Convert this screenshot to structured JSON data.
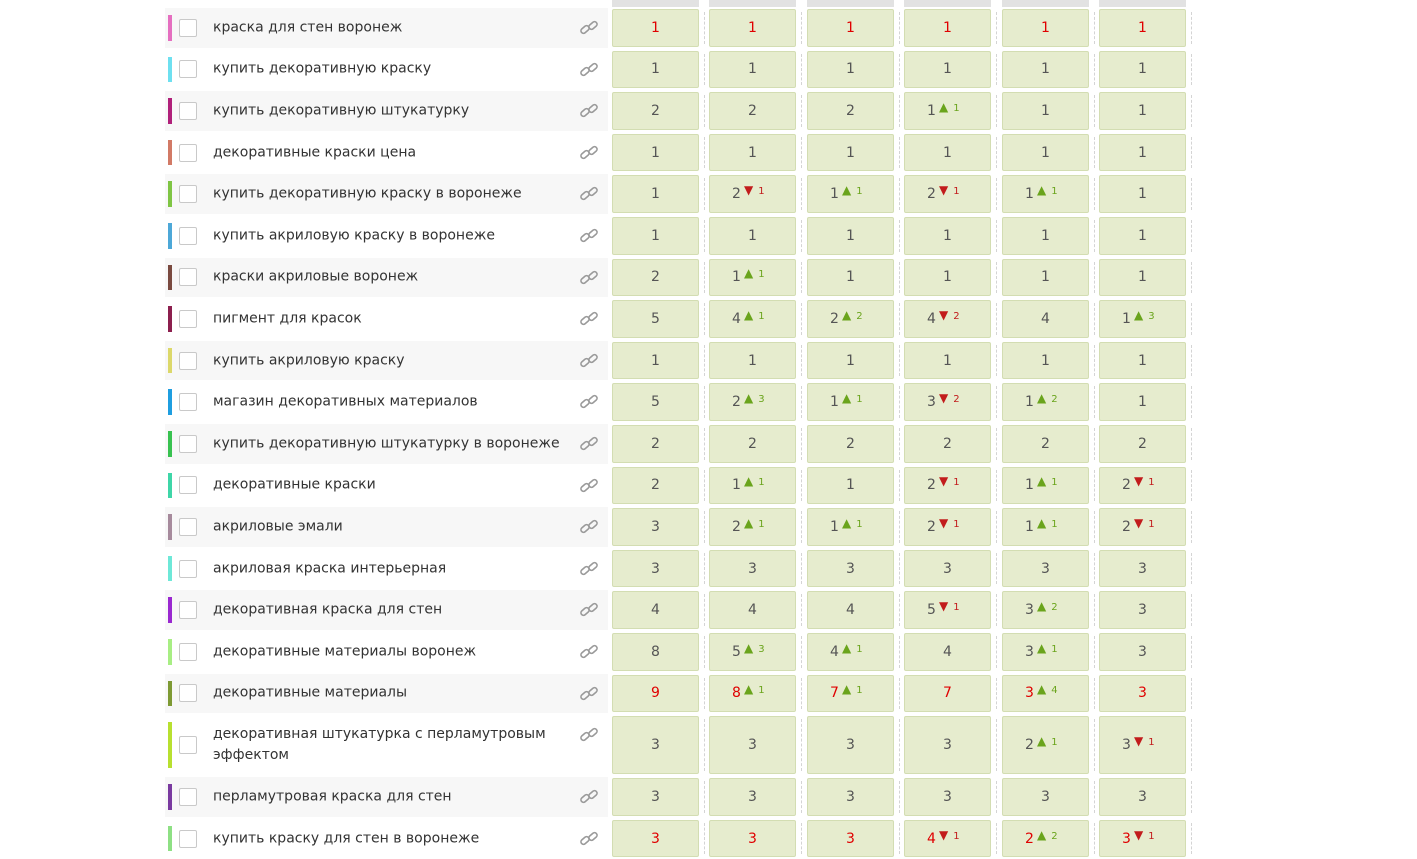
{
  "icons": {
    "link": "link-icon",
    "up": "triangle-up-icon",
    "down": "triangle-down-icon"
  },
  "colors": {
    "cell_bg": "#e6ecce",
    "top_position": "#e00000",
    "up": "#6aa41c",
    "down": "#c21c1c"
  },
  "rows": [
    {
      "keyword": "краска для стен воронеж",
      "color": "#e56fc0",
      "top": true,
      "cells": [
        {
          "pos": "1"
        },
        {
          "pos": "1"
        },
        {
          "pos": "1"
        },
        {
          "pos": "1"
        },
        {
          "pos": "1"
        },
        {
          "pos": "1"
        }
      ]
    },
    {
      "keyword": "купить декоративную краску",
      "color": "#6ee0f0",
      "cells": [
        {
          "pos": "1"
        },
        {
          "pos": "1"
        },
        {
          "pos": "1"
        },
        {
          "pos": "1"
        },
        {
          "pos": "1"
        },
        {
          "pos": "1"
        }
      ]
    },
    {
      "keyword": "купить декоративную штукатурку",
      "color": "#b0207a",
      "cells": [
        {
          "pos": "2"
        },
        {
          "pos": "2"
        },
        {
          "pos": "2"
        },
        {
          "pos": "1",
          "dir": "up",
          "delta": "1"
        },
        {
          "pos": "1"
        },
        {
          "pos": "1"
        }
      ]
    },
    {
      "keyword": "декоративные краски цена",
      "color": "#d27a66",
      "cells": [
        {
          "pos": "1"
        },
        {
          "pos": "1"
        },
        {
          "pos": "1"
        },
        {
          "pos": "1"
        },
        {
          "pos": "1"
        },
        {
          "pos": "1"
        }
      ]
    },
    {
      "keyword": "купить декоративную краску в воронеже",
      "color": "#7fc544",
      "cells": [
        {
          "pos": "1"
        },
        {
          "pos": "2",
          "dir": "down",
          "delta": "1"
        },
        {
          "pos": "1",
          "dir": "up",
          "delta": "1"
        },
        {
          "pos": "2",
          "dir": "down",
          "delta": "1"
        },
        {
          "pos": "1",
          "dir": "up",
          "delta": "1"
        },
        {
          "pos": "1"
        }
      ]
    },
    {
      "keyword": "купить акриловую краску в воронеже",
      "color": "#4da8d8",
      "cells": [
        {
          "pos": "1"
        },
        {
          "pos": "1"
        },
        {
          "pos": "1"
        },
        {
          "pos": "1"
        },
        {
          "pos": "1"
        },
        {
          "pos": "1"
        }
      ]
    },
    {
      "keyword": "краски акриловые воронеж",
      "color": "#7a4a40",
      "cells": [
        {
          "pos": "2"
        },
        {
          "pos": "1",
          "dir": "up",
          "delta": "1"
        },
        {
          "pos": "1"
        },
        {
          "pos": "1"
        },
        {
          "pos": "1"
        },
        {
          "pos": "1"
        }
      ]
    },
    {
      "keyword": "пигмент для красок",
      "color": "#8c1f4e",
      "cells": [
        {
          "pos": "5"
        },
        {
          "pos": "4",
          "dir": "up",
          "delta": "1"
        },
        {
          "pos": "2",
          "dir": "up",
          "delta": "2"
        },
        {
          "pos": "4",
          "dir": "down",
          "delta": "2"
        },
        {
          "pos": "4"
        },
        {
          "pos": "1",
          "dir": "up",
          "delta": "3"
        }
      ]
    },
    {
      "keyword": "купить акриловую краску",
      "color": "#dcd86a",
      "cells": [
        {
          "pos": "1"
        },
        {
          "pos": "1"
        },
        {
          "pos": "1"
        },
        {
          "pos": "1"
        },
        {
          "pos": "1"
        },
        {
          "pos": "1"
        }
      ]
    },
    {
      "keyword": "магазин декоративных материалов",
      "color": "#1f9ee0",
      "cells": [
        {
          "pos": "5"
        },
        {
          "pos": "2",
          "dir": "up",
          "delta": "3"
        },
        {
          "pos": "1",
          "dir": "up",
          "delta": "1"
        },
        {
          "pos": "3",
          "dir": "down",
          "delta": "2"
        },
        {
          "pos": "1",
          "dir": "up",
          "delta": "2"
        },
        {
          "pos": "1"
        }
      ]
    },
    {
      "keyword": "купить декоративную штукатурку в воронеже",
      "color": "#38c250",
      "cells": [
        {
          "pos": "2"
        },
        {
          "pos": "2"
        },
        {
          "pos": "2"
        },
        {
          "pos": "2"
        },
        {
          "pos": "2"
        },
        {
          "pos": "2"
        }
      ]
    },
    {
      "keyword": "декоративные краски",
      "color": "#3fd6a8",
      "cells": [
        {
          "pos": "2"
        },
        {
          "pos": "1",
          "dir": "up",
          "delta": "1"
        },
        {
          "pos": "1"
        },
        {
          "pos": "2",
          "dir": "down",
          "delta": "1"
        },
        {
          "pos": "1",
          "dir": "up",
          "delta": "1"
        },
        {
          "pos": "2",
          "dir": "down",
          "delta": "1"
        }
      ]
    },
    {
      "keyword": "акриловые эмали",
      "color": "#a68a9c",
      "cells": [
        {
          "pos": "3"
        },
        {
          "pos": "2",
          "dir": "up",
          "delta": "1"
        },
        {
          "pos": "1",
          "dir": "up",
          "delta": "1"
        },
        {
          "pos": "2",
          "dir": "down",
          "delta": "1"
        },
        {
          "pos": "1",
          "dir": "up",
          "delta": "1"
        },
        {
          "pos": "2",
          "dir": "down",
          "delta": "1"
        }
      ]
    },
    {
      "keyword": "акриловая краска интерьерная",
      "color": "#6ee8d8",
      "cells": [
        {
          "pos": "3"
        },
        {
          "pos": "3"
        },
        {
          "pos": "3"
        },
        {
          "pos": "3"
        },
        {
          "pos": "3"
        },
        {
          "pos": "3"
        }
      ]
    },
    {
      "keyword": "декоративная краска для стен",
      "color": "#9a28d0",
      "cells": [
        {
          "pos": "4"
        },
        {
          "pos": "4"
        },
        {
          "pos": "4"
        },
        {
          "pos": "5",
          "dir": "down",
          "delta": "1"
        },
        {
          "pos": "3",
          "dir": "up",
          "delta": "2"
        },
        {
          "pos": "3"
        }
      ]
    },
    {
      "keyword": "декоративные материалы воронеж",
      "color": "#a8ee84",
      "cells": [
        {
          "pos": "8"
        },
        {
          "pos": "5",
          "dir": "up",
          "delta": "3"
        },
        {
          "pos": "4",
          "dir": "up",
          "delta": "1"
        },
        {
          "pos": "4"
        },
        {
          "pos": "3",
          "dir": "up",
          "delta": "1"
        },
        {
          "pos": "3"
        }
      ]
    },
    {
      "keyword": "декоративные материалы",
      "color": "#7e9a34",
      "top": true,
      "cells": [
        {
          "pos": "9"
        },
        {
          "pos": "8",
          "dir": "up",
          "delta": "1"
        },
        {
          "pos": "7",
          "dir": "up",
          "delta": "1"
        },
        {
          "pos": "7"
        },
        {
          "pos": "3",
          "dir": "up",
          "delta": "4"
        },
        {
          "pos": "3"
        }
      ]
    },
    {
      "keyword": "декоративная штукатурка с перламутровым эффектом",
      "color": "#b8e030",
      "tall": true,
      "cells": [
        {
          "pos": "3"
        },
        {
          "pos": "3"
        },
        {
          "pos": "3"
        },
        {
          "pos": "3"
        },
        {
          "pos": "2",
          "dir": "up",
          "delta": "1"
        },
        {
          "pos": "3",
          "dir": "down",
          "delta": "1"
        }
      ]
    },
    {
      "keyword": "перламутровая краска для стен",
      "color": "#7a3aa0",
      "cells": [
        {
          "pos": "3"
        },
        {
          "pos": "3"
        },
        {
          "pos": "3"
        },
        {
          "pos": "3"
        },
        {
          "pos": "3"
        },
        {
          "pos": "3"
        }
      ]
    },
    {
      "keyword": "купить краску для стен в воронеже",
      "color": "#8ee084",
      "top": true,
      "cells": [
        {
          "pos": "3"
        },
        {
          "pos": "3"
        },
        {
          "pos": "3"
        },
        {
          "pos": "4",
          "dir": "down",
          "delta": "1"
        },
        {
          "pos": "2",
          "dir": "up",
          "delta": "2"
        },
        {
          "pos": "3",
          "dir": "down",
          "delta": "1"
        }
      ]
    }
  ]
}
